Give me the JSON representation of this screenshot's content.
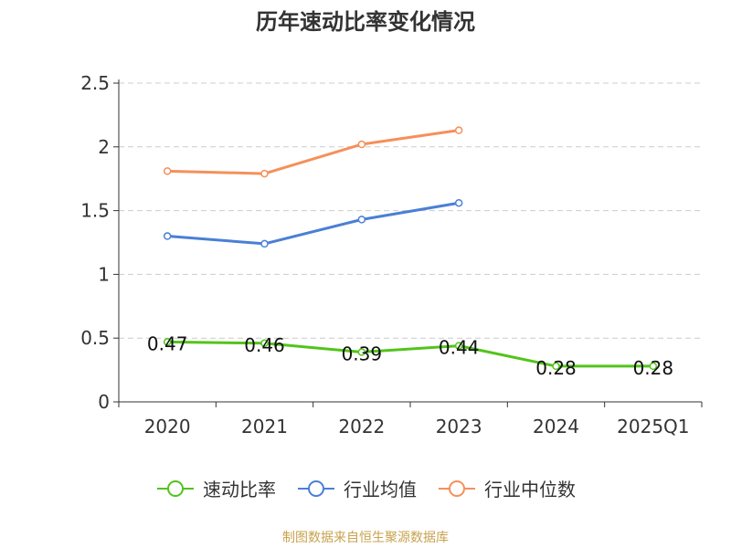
{
  "chart_data": {
    "type": "line",
    "title": "历年速动比率变化情况",
    "categories": [
      "2020",
      "2021",
      "2022",
      "2023",
      "2024",
      "2025Q1"
    ],
    "ylim": [
      0,
      2.5
    ],
    "yticks": [
      "0",
      "0.5",
      "1",
      "1.5",
      "2",
      "2.5"
    ],
    "grid": true,
    "legend_position": "bottom",
    "series": [
      {
        "name": "速动比率",
        "color": "#52c41a",
        "values": [
          0.47,
          0.46,
          0.39,
          0.44,
          0.28,
          0.28
        ],
        "labels": [
          "0.47",
          "0.46",
          "0.39",
          "0.44",
          "0.28",
          "0.28"
        ]
      },
      {
        "name": "行业均值",
        "color": "#4a7fd6",
        "values": [
          1.3,
          1.24,
          1.43,
          1.56,
          null,
          null
        ]
      },
      {
        "name": "行业中位数",
        "color": "#f5905a",
        "values": [
          1.81,
          1.79,
          2.02,
          2.13,
          null,
          null
        ]
      }
    ]
  },
  "source_note": "制图数据来自恒生聚源数据库"
}
